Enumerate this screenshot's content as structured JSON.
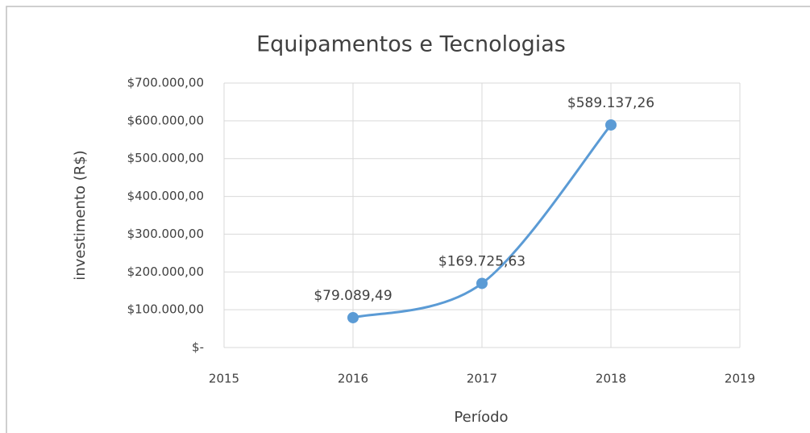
{
  "chart_data": {
    "type": "line",
    "title": "Equipamentos e Tecnologias",
    "x_label": "Período",
    "y_label": "investimento (R$)",
    "x": [
      2016,
      2017,
      2018
    ],
    "series": [
      {
        "name": "investimento",
        "color": "#5b9bd5",
        "values": [
          79089.49,
          169725.63,
          589137.26
        ],
        "value_labels": [
          "$79.089,49",
          "$169.725,63",
          "$589.137,26"
        ]
      }
    ],
    "xlim": [
      2015,
      2019
    ],
    "xticks": [
      2015,
      2016,
      2017,
      2018,
      2019
    ],
    "ylim": [
      0,
      700000
    ],
    "yticks": [
      {
        "value": 0,
        "label": "$-"
      },
      {
        "value": 100000,
        "label": "$100.000,00"
      },
      {
        "value": 200000,
        "label": "$200.000,00"
      },
      {
        "value": 300000,
        "label": "$300.000,00"
      },
      {
        "value": 400000,
        "label": "$400.000,00"
      },
      {
        "value": 500000,
        "label": "$500.000,00"
      },
      {
        "value": 600000,
        "label": "$600.000,00"
      },
      {
        "value": 700000,
        "label": "$700.000,00"
      }
    ],
    "grid": true,
    "smooth": true
  }
}
